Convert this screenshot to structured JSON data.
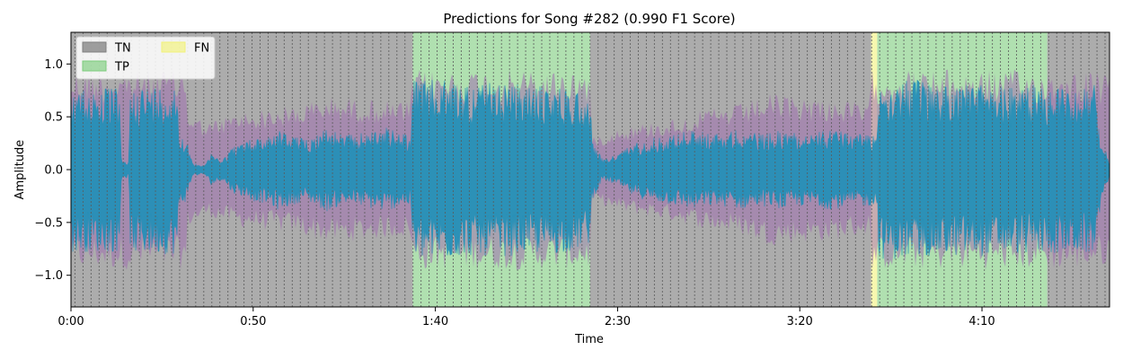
{
  "chart_data": {
    "type": "area",
    "title": "Predictions for Song #282 (0.990 F1 Score)",
    "xlabel": "Time",
    "ylabel": "Amplitude",
    "xlim": [
      0,
      342
    ],
    "ylim": [
      -1.3,
      1.3
    ],
    "x_ticks": [
      {
        "value": 0,
        "label": "0:00"
      },
      {
        "value": 60,
        "label": "0:50"
      },
      {
        "value": 120,
        "label": "1:40"
      },
      {
        "value": 180,
        "label": "2:30"
      },
      {
        "value": 240,
        "label": "3:20"
      },
      {
        "value": 300,
        "label": "4:10"
      }
    ],
    "y_ticks": [
      {
        "value": 1.0,
        "label": "1.0"
      },
      {
        "value": 0.5,
        "label": "0.5"
      },
      {
        "value": 0.0,
        "label": "0.0"
      },
      {
        "value": -0.5,
        "label": "−0.5"
      },
      {
        "value": -1.0,
        "label": "−1.0"
      }
    ],
    "legend": {
      "placement": "top-left",
      "entries": [
        {
          "label": "TN",
          "color": "#808080"
        },
        {
          "label": "TP",
          "color": "#7ccc7c"
        },
        {
          "label": "FN",
          "color": "#f2f27a"
        }
      ]
    },
    "prediction_regions": [
      {
        "label": "TN",
        "start": 0,
        "end": 112.5
      },
      {
        "label": "TP",
        "start": 112.5,
        "end": 171
      },
      {
        "label": "TN",
        "start": 171,
        "end": 263.5
      },
      {
        "label": "FN",
        "start": 263.5,
        "end": 265.5
      },
      {
        "label": "TP",
        "start": 265.5,
        "end": 321.5
      },
      {
        "label": "TN",
        "start": 321.5,
        "end": 342
      }
    ],
    "beat_interval": 2.65,
    "series": [
      {
        "role": "waveform",
        "color": "#1f8fb8",
        "envelope": [
          [
            0,
            0.78
          ],
          [
            1.5,
            0.78
          ],
          [
            16,
            0.78
          ],
          [
            16.6,
            0.08
          ],
          [
            19,
            0.08
          ],
          [
            19.6,
            0.8
          ],
          [
            35,
            0.8
          ],
          [
            35.6,
            0.35
          ],
          [
            38,
            0.3
          ],
          [
            40,
            0.06
          ],
          [
            44,
            0.05
          ],
          [
            46,
            0.15
          ],
          [
            50,
            0.1
          ],
          [
            53,
            0.22
          ],
          [
            56,
            0.25
          ],
          [
            60,
            0.3
          ],
          [
            64,
            0.32
          ],
          [
            68,
            0.38
          ],
          [
            72,
            0.35
          ],
          [
            76,
            0.3
          ],
          [
            80,
            0.33
          ],
          [
            84,
            0.4
          ],
          [
            88,
            0.35
          ],
          [
            92,
            0.33
          ],
          [
            96,
            0.35
          ],
          [
            100,
            0.38
          ],
          [
            104,
            0.4
          ],
          [
            108,
            0.35
          ],
          [
            112,
            0.35
          ],
          [
            112.6,
            0.85
          ],
          [
            126,
            0.85
          ],
          [
            128,
            0.82
          ],
          [
            145,
            0.82
          ],
          [
            148,
            0.8
          ],
          [
            160,
            0.8
          ],
          [
            165,
            0.78
          ],
          [
            171,
            0.7
          ],
          [
            171.6,
            0.3
          ],
          [
            175,
            0.1
          ],
          [
            180,
            0.15
          ],
          [
            185,
            0.25
          ],
          [
            190,
            0.3
          ],
          [
            195,
            0.32
          ],
          [
            200,
            0.35
          ],
          [
            205,
            0.38
          ],
          [
            210,
            0.35
          ],
          [
            215,
            0.35
          ],
          [
            220,
            0.38
          ],
          [
            225,
            0.35
          ],
          [
            230,
            0.35
          ],
          [
            235,
            0.38
          ],
          [
            240,
            0.35
          ],
          [
            245,
            0.35
          ],
          [
            250,
            0.38
          ],
          [
            255,
            0.36
          ],
          [
            263,
            0.35
          ],
          [
            265.5,
            0.35
          ],
          [
            266.1,
            0.85
          ],
          [
            280,
            0.85
          ],
          [
            283,
            0.82
          ],
          [
            300,
            0.82
          ],
          [
            302,
            0.8
          ],
          [
            321.5,
            0.8
          ],
          [
            322,
            0.8
          ],
          [
            337,
            0.8
          ],
          [
            338,
            0.5
          ],
          [
            342,
            0.05
          ]
        ]
      },
      {
        "role": "overlay",
        "color": "#a070b0",
        "envelope": [
          [
            0,
            0.95
          ],
          [
            38,
            0.95
          ],
          [
            38.5,
            0.55
          ],
          [
            45,
            0.45
          ],
          [
            55,
            0.55
          ],
          [
            65,
            0.58
          ],
          [
            75,
            0.62
          ],
          [
            85,
            0.7
          ],
          [
            95,
            0.68
          ],
          [
            105,
            0.65
          ],
          [
            112,
            0.65
          ],
          [
            112.5,
            0.95
          ],
          [
            171,
            0.95
          ],
          [
            171.5,
            0.3
          ],
          [
            180,
            0.4
          ],
          [
            190,
            0.45
          ],
          [
            200,
            0.5
          ],
          [
            210,
            0.58
          ],
          [
            220,
            0.62
          ],
          [
            230,
            0.72
          ],
          [
            240,
            0.7
          ],
          [
            250,
            0.68
          ],
          [
            263,
            0.62
          ],
          [
            263.5,
            0.95
          ],
          [
            335,
            0.95
          ],
          [
            342,
            0.9
          ]
        ]
      }
    ]
  }
}
